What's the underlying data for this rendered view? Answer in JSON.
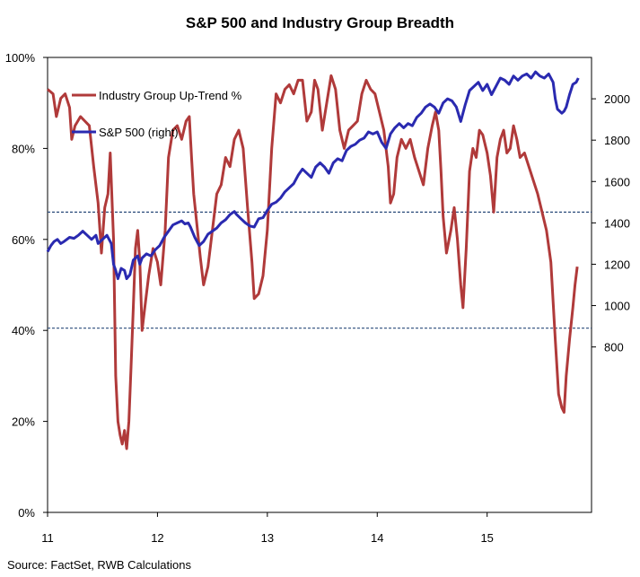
{
  "chart_data": {
    "type": "line",
    "title": "S&P 500 and Industry Group Breadth",
    "source": "Source: FactSet, RWB Calculations",
    "x_axis": {
      "ticks": [
        "11",
        "12",
        "13",
        "14",
        "15"
      ],
      "values": [
        2011,
        2012,
        2013,
        2014,
        2015
      ],
      "range": [
        2011,
        2015.95
      ]
    },
    "y_left": {
      "ticks": [
        "0%",
        "20%",
        "40%",
        "60%",
        "80%",
        "100%"
      ],
      "values": [
        0,
        20,
        40,
        60,
        80,
        100
      ],
      "range": [
        0,
        100
      ]
    },
    "y_right": {
      "ticks": [
        "800",
        "1000",
        "1200",
        "1400",
        "1600",
        "1800",
        "2000"
      ],
      "values": [
        800,
        1000,
        1200,
        1400,
        1600,
        1800,
        2000
      ],
      "range": [
        0,
        2200
      ]
    },
    "reference_lines": [
      {
        "axis": "left",
        "value": 66,
        "style": "dashed"
      },
      {
        "axis": "left",
        "value": 40.5,
        "style": "dashed"
      }
    ],
    "legend_placement": "top-left",
    "grid": false,
    "series": [
      {
        "name": "Industry Group Up-Trend %",
        "axis": "left",
        "color": "#b03a3a",
        "points": [
          [
            2011.0,
            93
          ],
          [
            2011.05,
            92
          ],
          [
            2011.08,
            87
          ],
          [
            2011.12,
            91
          ],
          [
            2011.16,
            92
          ],
          [
            2011.2,
            89
          ],
          [
            2011.22,
            82
          ],
          [
            2011.25,
            85
          ],
          [
            2011.3,
            87
          ],
          [
            2011.34,
            86
          ],
          [
            2011.38,
            85
          ],
          [
            2011.42,
            76
          ],
          [
            2011.46,
            68
          ],
          [
            2011.49,
            57
          ],
          [
            2011.52,
            67
          ],
          [
            2011.55,
            70
          ],
          [
            2011.57,
            79
          ],
          [
            2011.6,
            60
          ],
          [
            2011.62,
            30
          ],
          [
            2011.64,
            20
          ],
          [
            2011.66,
            17
          ],
          [
            2011.68,
            15
          ],
          [
            2011.7,
            18
          ],
          [
            2011.72,
            14
          ],
          [
            2011.74,
            20
          ],
          [
            2011.76,
            32
          ],
          [
            2011.78,
            45
          ],
          [
            2011.8,
            58
          ],
          [
            2011.82,
            62
          ],
          [
            2011.84,
            55
          ],
          [
            2011.86,
            40
          ],
          [
            2011.88,
            44
          ],
          [
            2011.92,
            52
          ],
          [
            2011.96,
            58
          ],
          [
            2012.0,
            55
          ],
          [
            2012.03,
            50
          ],
          [
            2012.07,
            62
          ],
          [
            2012.1,
            78
          ],
          [
            2012.14,
            84
          ],
          [
            2012.18,
            85
          ],
          [
            2012.22,
            82
          ],
          [
            2012.26,
            86
          ],
          [
            2012.29,
            87
          ],
          [
            2012.31,
            78
          ],
          [
            2012.33,
            70
          ],
          [
            2012.36,
            63
          ],
          [
            2012.39,
            56
          ],
          [
            2012.42,
            50
          ],
          [
            2012.46,
            54
          ],
          [
            2012.5,
            62
          ],
          [
            2012.54,
            70
          ],
          [
            2012.58,
            72
          ],
          [
            2012.62,
            78
          ],
          [
            2012.66,
            76
          ],
          [
            2012.7,
            82
          ],
          [
            2012.74,
            84
          ],
          [
            2012.78,
            80
          ],
          [
            2012.82,
            67
          ],
          [
            2012.86,
            55
          ],
          [
            2012.88,
            47
          ],
          [
            2012.92,
            48
          ],
          [
            2012.96,
            52
          ],
          [
            2013.0,
            62
          ],
          [
            2013.04,
            80
          ],
          [
            2013.08,
            92
          ],
          [
            2013.12,
            90
          ],
          [
            2013.16,
            93
          ],
          [
            2013.2,
            94
          ],
          [
            2013.24,
            92
          ],
          [
            2013.28,
            95
          ],
          [
            2013.32,
            95
          ],
          [
            2013.36,
            86
          ],
          [
            2013.4,
            88
          ],
          [
            2013.43,
            95
          ],
          [
            2013.46,
            93
          ],
          [
            2013.5,
            84
          ],
          [
            2013.54,
            90
          ],
          [
            2013.58,
            96
          ],
          [
            2013.62,
            93
          ],
          [
            2013.66,
            84
          ],
          [
            2013.7,
            80
          ],
          [
            2013.74,
            84
          ],
          [
            2013.78,
            85
          ],
          [
            2013.82,
            86
          ],
          [
            2013.86,
            92
          ],
          [
            2013.9,
            95
          ],
          [
            2013.94,
            93
          ],
          [
            2013.98,
            92
          ],
          [
            2014.02,
            88
          ],
          [
            2014.06,
            84
          ],
          [
            2014.1,
            76
          ],
          [
            2014.12,
            68
          ],
          [
            2014.15,
            70
          ],
          [
            2014.18,
            78
          ],
          [
            2014.22,
            82
          ],
          [
            2014.26,
            80
          ],
          [
            2014.3,
            82
          ],
          [
            2014.34,
            78
          ],
          [
            2014.38,
            75
          ],
          [
            2014.42,
            72
          ],
          [
            2014.46,
            80
          ],
          [
            2014.5,
            85
          ],
          [
            2014.53,
            88
          ],
          [
            2014.56,
            84
          ],
          [
            2014.58,
            75
          ],
          [
            2014.6,
            65
          ],
          [
            2014.63,
            57
          ],
          [
            2014.67,
            62
          ],
          [
            2014.7,
            67
          ],
          [
            2014.73,
            60
          ],
          [
            2014.76,
            50
          ],
          [
            2014.78,
            45
          ],
          [
            2014.81,
            58
          ],
          [
            2014.84,
            75
          ],
          [
            2014.87,
            80
          ],
          [
            2014.9,
            78
          ],
          [
            2014.93,
            84
          ],
          [
            2014.96,
            83
          ],
          [
            2015.0,
            79
          ],
          [
            2015.03,
            74
          ],
          [
            2015.06,
            66
          ],
          [
            2015.09,
            78
          ],
          [
            2015.12,
            82
          ],
          [
            2015.15,
            84
          ],
          [
            2015.18,
            79
          ],
          [
            2015.21,
            80
          ],
          [
            2015.24,
            85
          ],
          [
            2015.27,
            82
          ],
          [
            2015.3,
            78
          ],
          [
            2015.34,
            79
          ],
          [
            2015.38,
            76
          ],
          [
            2015.42,
            73
          ],
          [
            2015.46,
            70
          ],
          [
            2015.5,
            66
          ],
          [
            2015.54,
            62
          ],
          [
            2015.58,
            55
          ],
          [
            2015.62,
            38
          ],
          [
            2015.65,
            26
          ],
          [
            2015.68,
            23
          ],
          [
            2015.7,
            22
          ],
          [
            2015.72,
            30
          ],
          [
            2015.75,
            38
          ],
          [
            2015.78,
            45
          ],
          [
            2015.8,
            50
          ],
          [
            2015.82,
            54
          ]
        ]
      },
      {
        "name": "S&P 500 (right)",
        "axis": "right",
        "color": "#2a2ab0",
        "points": [
          [
            2011.0,
            1260
          ],
          [
            2011.03,
            1290
          ],
          [
            2011.06,
            1310
          ],
          [
            2011.09,
            1320
          ],
          [
            2011.12,
            1300
          ],
          [
            2011.15,
            1310
          ],
          [
            2011.2,
            1330
          ],
          [
            2011.24,
            1325
          ],
          [
            2011.28,
            1340
          ],
          [
            2011.32,
            1360
          ],
          [
            2011.36,
            1340
          ],
          [
            2011.4,
            1320
          ],
          [
            2011.44,
            1340
          ],
          [
            2011.46,
            1300
          ],
          [
            2011.5,
            1320
          ],
          [
            2011.54,
            1340
          ],
          [
            2011.58,
            1300
          ],
          [
            2011.6,
            1200
          ],
          [
            2011.62,
            1170
          ],
          [
            2011.64,
            1130
          ],
          [
            2011.67,
            1180
          ],
          [
            2011.7,
            1170
          ],
          [
            2011.72,
            1130
          ],
          [
            2011.75,
            1150
          ],
          [
            2011.78,
            1220
          ],
          [
            2011.82,
            1240
          ],
          [
            2011.84,
            1200
          ],
          [
            2011.86,
            1230
          ],
          [
            2011.9,
            1250
          ],
          [
            2011.94,
            1240
          ],
          [
            2011.98,
            1270
          ],
          [
            2012.02,
            1290
          ],
          [
            2012.06,
            1330
          ],
          [
            2012.1,
            1360
          ],
          [
            2012.14,
            1390
          ],
          [
            2012.18,
            1400
          ],
          [
            2012.22,
            1410
          ],
          [
            2012.25,
            1395
          ],
          [
            2012.28,
            1400
          ],
          [
            2012.3,
            1380
          ],
          [
            2012.34,
            1330
          ],
          [
            2012.38,
            1290
          ],
          [
            2012.42,
            1310
          ],
          [
            2012.46,
            1345
          ],
          [
            2012.5,
            1360
          ],
          [
            2012.54,
            1375
          ],
          [
            2012.58,
            1400
          ],
          [
            2012.62,
            1415
          ],
          [
            2012.66,
            1440
          ],
          [
            2012.7,
            1455
          ],
          [
            2012.72,
            1440
          ],
          [
            2012.76,
            1420
          ],
          [
            2012.8,
            1400
          ],
          [
            2012.84,
            1385
          ],
          [
            2012.88,
            1380
          ],
          [
            2012.92,
            1420
          ],
          [
            2012.96,
            1425
          ],
          [
            2013.0,
            1460
          ],
          [
            2013.04,
            1490
          ],
          [
            2013.08,
            1500
          ],
          [
            2013.12,
            1520
          ],
          [
            2013.16,
            1550
          ],
          [
            2013.2,
            1570
          ],
          [
            2013.24,
            1590
          ],
          [
            2013.28,
            1630
          ],
          [
            2013.32,
            1660
          ],
          [
            2013.36,
            1640
          ],
          [
            2013.4,
            1620
          ],
          [
            2013.44,
            1670
          ],
          [
            2013.48,
            1690
          ],
          [
            2013.52,
            1670
          ],
          [
            2013.56,
            1640
          ],
          [
            2013.6,
            1690
          ],
          [
            2013.64,
            1710
          ],
          [
            2013.68,
            1700
          ],
          [
            2013.72,
            1750
          ],
          [
            2013.76,
            1770
          ],
          [
            2013.8,
            1780
          ],
          [
            2013.84,
            1800
          ],
          [
            2013.88,
            1810
          ],
          [
            2013.92,
            1840
          ],
          [
            2013.96,
            1830
          ],
          [
            2014.0,
            1840
          ],
          [
            2014.04,
            1790
          ],
          [
            2014.08,
            1760
          ],
          [
            2014.12,
            1830
          ],
          [
            2014.16,
            1860
          ],
          [
            2014.2,
            1880
          ],
          [
            2014.24,
            1860
          ],
          [
            2014.28,
            1880
          ],
          [
            2014.32,
            1870
          ],
          [
            2014.36,
            1910
          ],
          [
            2014.4,
            1930
          ],
          [
            2014.44,
            1960
          ],
          [
            2014.48,
            1975
          ],
          [
            2014.52,
            1960
          ],
          [
            2014.56,
            1930
          ],
          [
            2014.6,
            1980
          ],
          [
            2014.64,
            2000
          ],
          [
            2014.68,
            1990
          ],
          [
            2014.72,
            1960
          ],
          [
            2014.76,
            1890
          ],
          [
            2014.8,
            1970
          ],
          [
            2014.84,
            2040
          ],
          [
            2014.88,
            2060
          ],
          [
            2014.92,
            2080
          ],
          [
            2014.96,
            2040
          ],
          [
            2015.0,
            2070
          ],
          [
            2015.04,
            2020
          ],
          [
            2015.08,
            2060
          ],
          [
            2015.12,
            2100
          ],
          [
            2015.16,
            2090
          ],
          [
            2015.2,
            2070
          ],
          [
            2015.24,
            2110
          ],
          [
            2015.28,
            2090
          ],
          [
            2015.32,
            2110
          ],
          [
            2015.36,
            2120
          ],
          [
            2015.4,
            2100
          ],
          [
            2015.44,
            2130
          ],
          [
            2015.48,
            2110
          ],
          [
            2015.52,
            2100
          ],
          [
            2015.56,
            2120
          ],
          [
            2015.6,
            2080
          ],
          [
            2015.62,
            2000
          ],
          [
            2015.64,
            1950
          ],
          [
            2015.66,
            1940
          ],
          [
            2015.68,
            1930
          ],
          [
            2015.7,
            1940
          ],
          [
            2015.72,
            1960
          ],
          [
            2015.75,
            2020
          ],
          [
            2015.78,
            2070
          ],
          [
            2015.81,
            2080
          ],
          [
            2015.83,
            2100
          ]
        ]
      }
    ]
  }
}
